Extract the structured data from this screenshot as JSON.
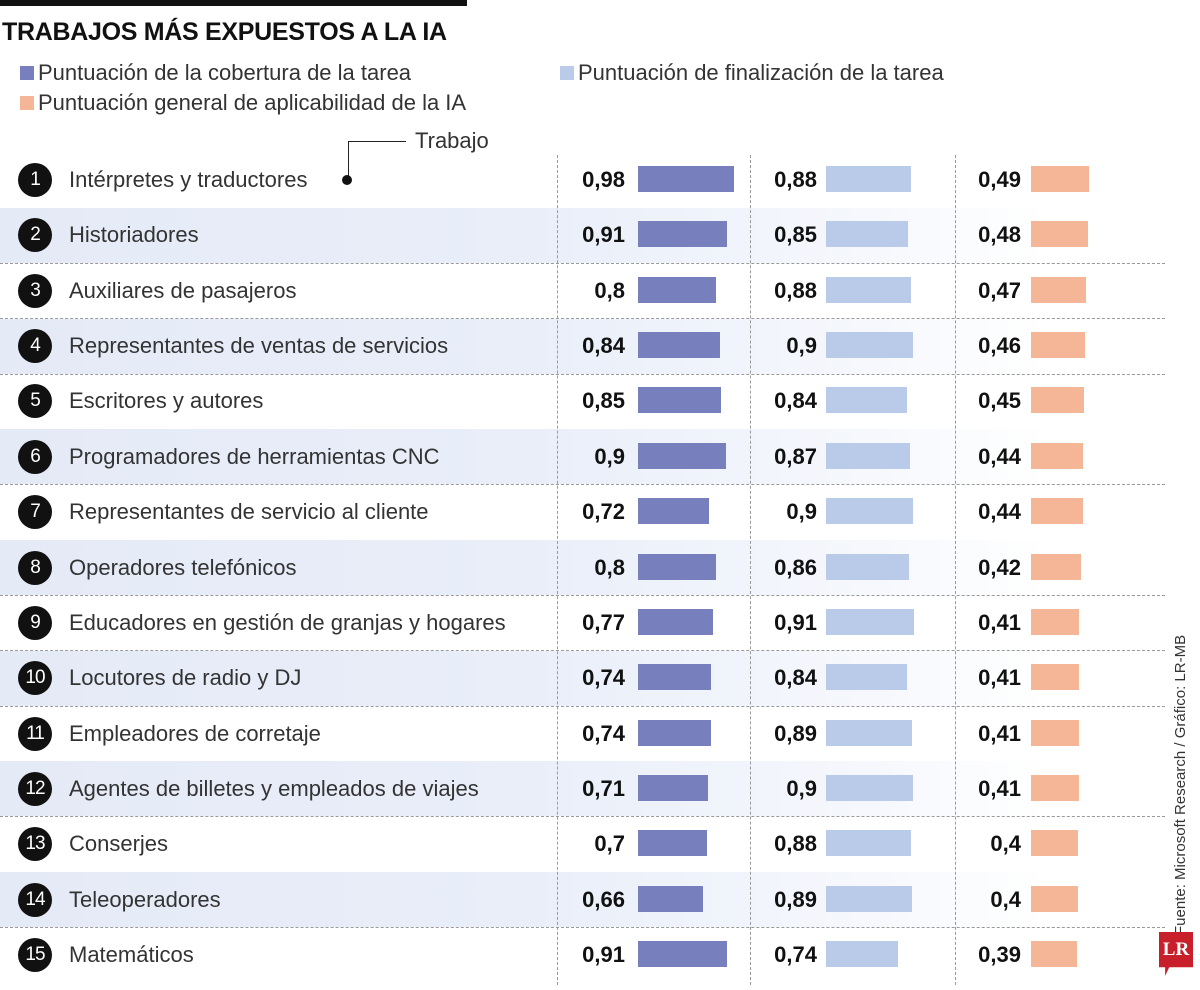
{
  "title": "TRABAJOS MÁS EXPUESTOS A LA IA",
  "legend": [
    {
      "label": "Puntuación de la cobertura de la tarea",
      "color": "#7780bc"
    },
    {
      "label": "Puntuación de finalización de la tarea",
      "color": "#b9cbe9"
    },
    {
      "label": "Puntuación general de aplicabilidad de la IA",
      "color": "#f5b597"
    }
  ],
  "callout": "Trabajo",
  "source": "Fuente: Microsoft Research / Gráfico: LR-MB",
  "logo": "LR",
  "colors": {
    "row_alt": "#e5eaf7",
    "text": "#111111"
  },
  "chart_data": {
    "type": "table",
    "title": "TRABAJOS MÁS EXPUESTOS A LA IA",
    "columns": [
      "Trabajo",
      "Puntuación de la cobertura de la tarea",
      "Puntuación de finalización de la tarea",
      "Puntuación general de aplicabilidad de la IA"
    ],
    "rows": [
      {
        "rank": "1",
        "job": "Intérpretes y traductores",
        "v": [
          "0,98",
          "0,88",
          "0,49"
        ]
      },
      {
        "rank": "2",
        "job": "Historiadores",
        "v": [
          "0,91",
          "0,85",
          "0,48"
        ]
      },
      {
        "rank": "3",
        "job": "Auxiliares de pasajeros",
        "v": [
          "0,8",
          "0,88",
          "0,47"
        ]
      },
      {
        "rank": "4",
        "job": "Representantes de ventas de servicios",
        "v": [
          "0,84",
          "0,9",
          "0,46"
        ]
      },
      {
        "rank": "5",
        "job": "Escritores y autores",
        "v": [
          "0,85",
          "0,84",
          "0,45"
        ]
      },
      {
        "rank": "6",
        "job": "Programadores de herramientas CNC",
        "v": [
          "0,9",
          "0,87",
          "0,44"
        ]
      },
      {
        "rank": "7",
        "job": "Representantes de servicio al cliente",
        "v": [
          "0,72",
          "0,9",
          "0,44"
        ]
      },
      {
        "rank": "8",
        "job": "Operadores telefónicos",
        "v": [
          "0,8",
          "0,86",
          "0,42"
        ]
      },
      {
        "rank": "9",
        "job": "Educadores en gestión de granjas y hogares",
        "v": [
          "0,77",
          "0,91",
          "0,41"
        ]
      },
      {
        "rank": "10",
        "job": "Locutores de radio y DJ",
        "v": [
          "0,74",
          "0,84",
          "0,41"
        ]
      },
      {
        "rank": "11",
        "job": "Empleadores de corretaje",
        "v": [
          "0,74",
          "0,89",
          "0,41"
        ]
      },
      {
        "rank": "12",
        "job": "Agentes de billetes y empleados de viajes",
        "v": [
          "0,71",
          "0,9",
          "0,41"
        ]
      },
      {
        "rank": "13",
        "job": "Conserjes",
        "v": [
          "0,7",
          "0,88",
          "0,4"
        ]
      },
      {
        "rank": "14",
        "job": "Teleoperadores",
        "v": [
          "0,66",
          "0,89",
          "0,4"
        ]
      },
      {
        "rank": "15",
        "job": "Matemáticos",
        "v": [
          "0,91",
          "0,74",
          "0,39"
        ]
      }
    ]
  }
}
